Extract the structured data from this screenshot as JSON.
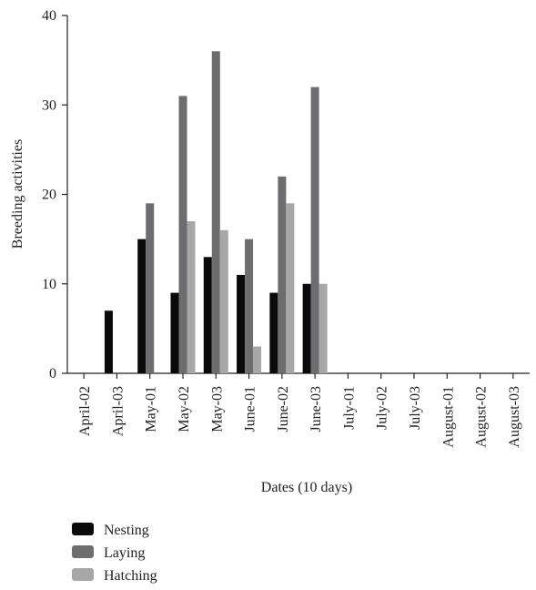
{
  "chart_data": {
    "type": "bar",
    "xlabel": "Dates (10 days)",
    "ylabel": "Breeding activities",
    "ylim": [
      0,
      40
    ],
    "yticks": [
      0,
      10,
      20,
      30,
      40
    ],
    "grid": false,
    "legend_position": "bottom-left",
    "categories": [
      "April-02",
      "April-03",
      "May-01",
      "May-02",
      "May-03",
      "June-01",
      "June-02",
      "June-03",
      "July-01",
      "July-02",
      "July-03",
      "August-01",
      "August-02",
      "August-03"
    ],
    "series": [
      {
        "name": "Nesting",
        "color": "#0a0a0a",
        "values": [
          0,
          7,
          15,
          9,
          13,
          11,
          9,
          10,
          0,
          0,
          0,
          0,
          0,
          0
        ]
      },
      {
        "name": "Laying",
        "color": "#6d6d70",
        "values": [
          0,
          0,
          19,
          31,
          36,
          15,
          22,
          32,
          0,
          0,
          0,
          0,
          0,
          0
        ]
      },
      {
        "name": "Hatching",
        "color": "#a7a7a7",
        "values": [
          0,
          0,
          0,
          17,
          16,
          3,
          19,
          10,
          0,
          0,
          0,
          0,
          0,
          0
        ]
      }
    ]
  }
}
